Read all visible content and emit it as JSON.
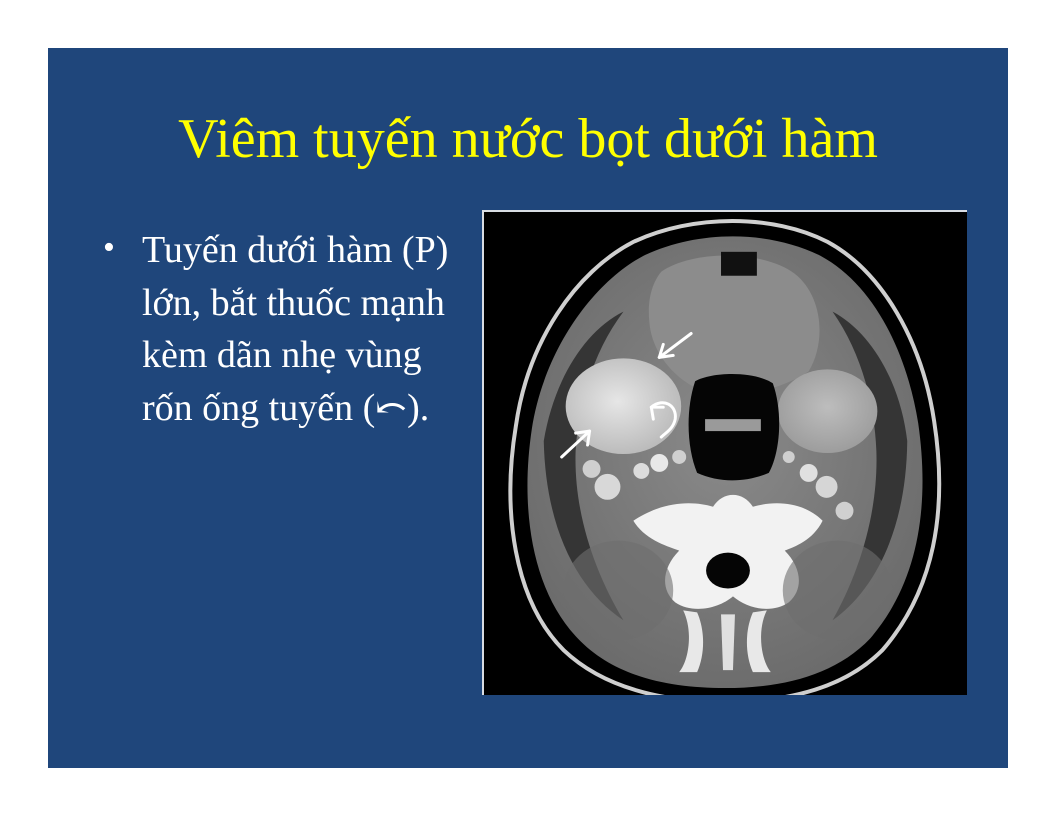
{
  "slide": {
    "title": "Viêm tuyến nước bọt dưới hàm",
    "bullet_symbol": "•",
    "bullet_text": "Tuyến dưới hàm (P) lớn, bắt thuốc mạnh kèm dãn nhẹ vùng rốn ống tuyến (⤺).",
    "colors": {
      "background": "#1f467b",
      "title": "#ffff00",
      "text": "#ffffff"
    }
  },
  "image": {
    "description_icon": "axial-ct-neck-image"
  }
}
